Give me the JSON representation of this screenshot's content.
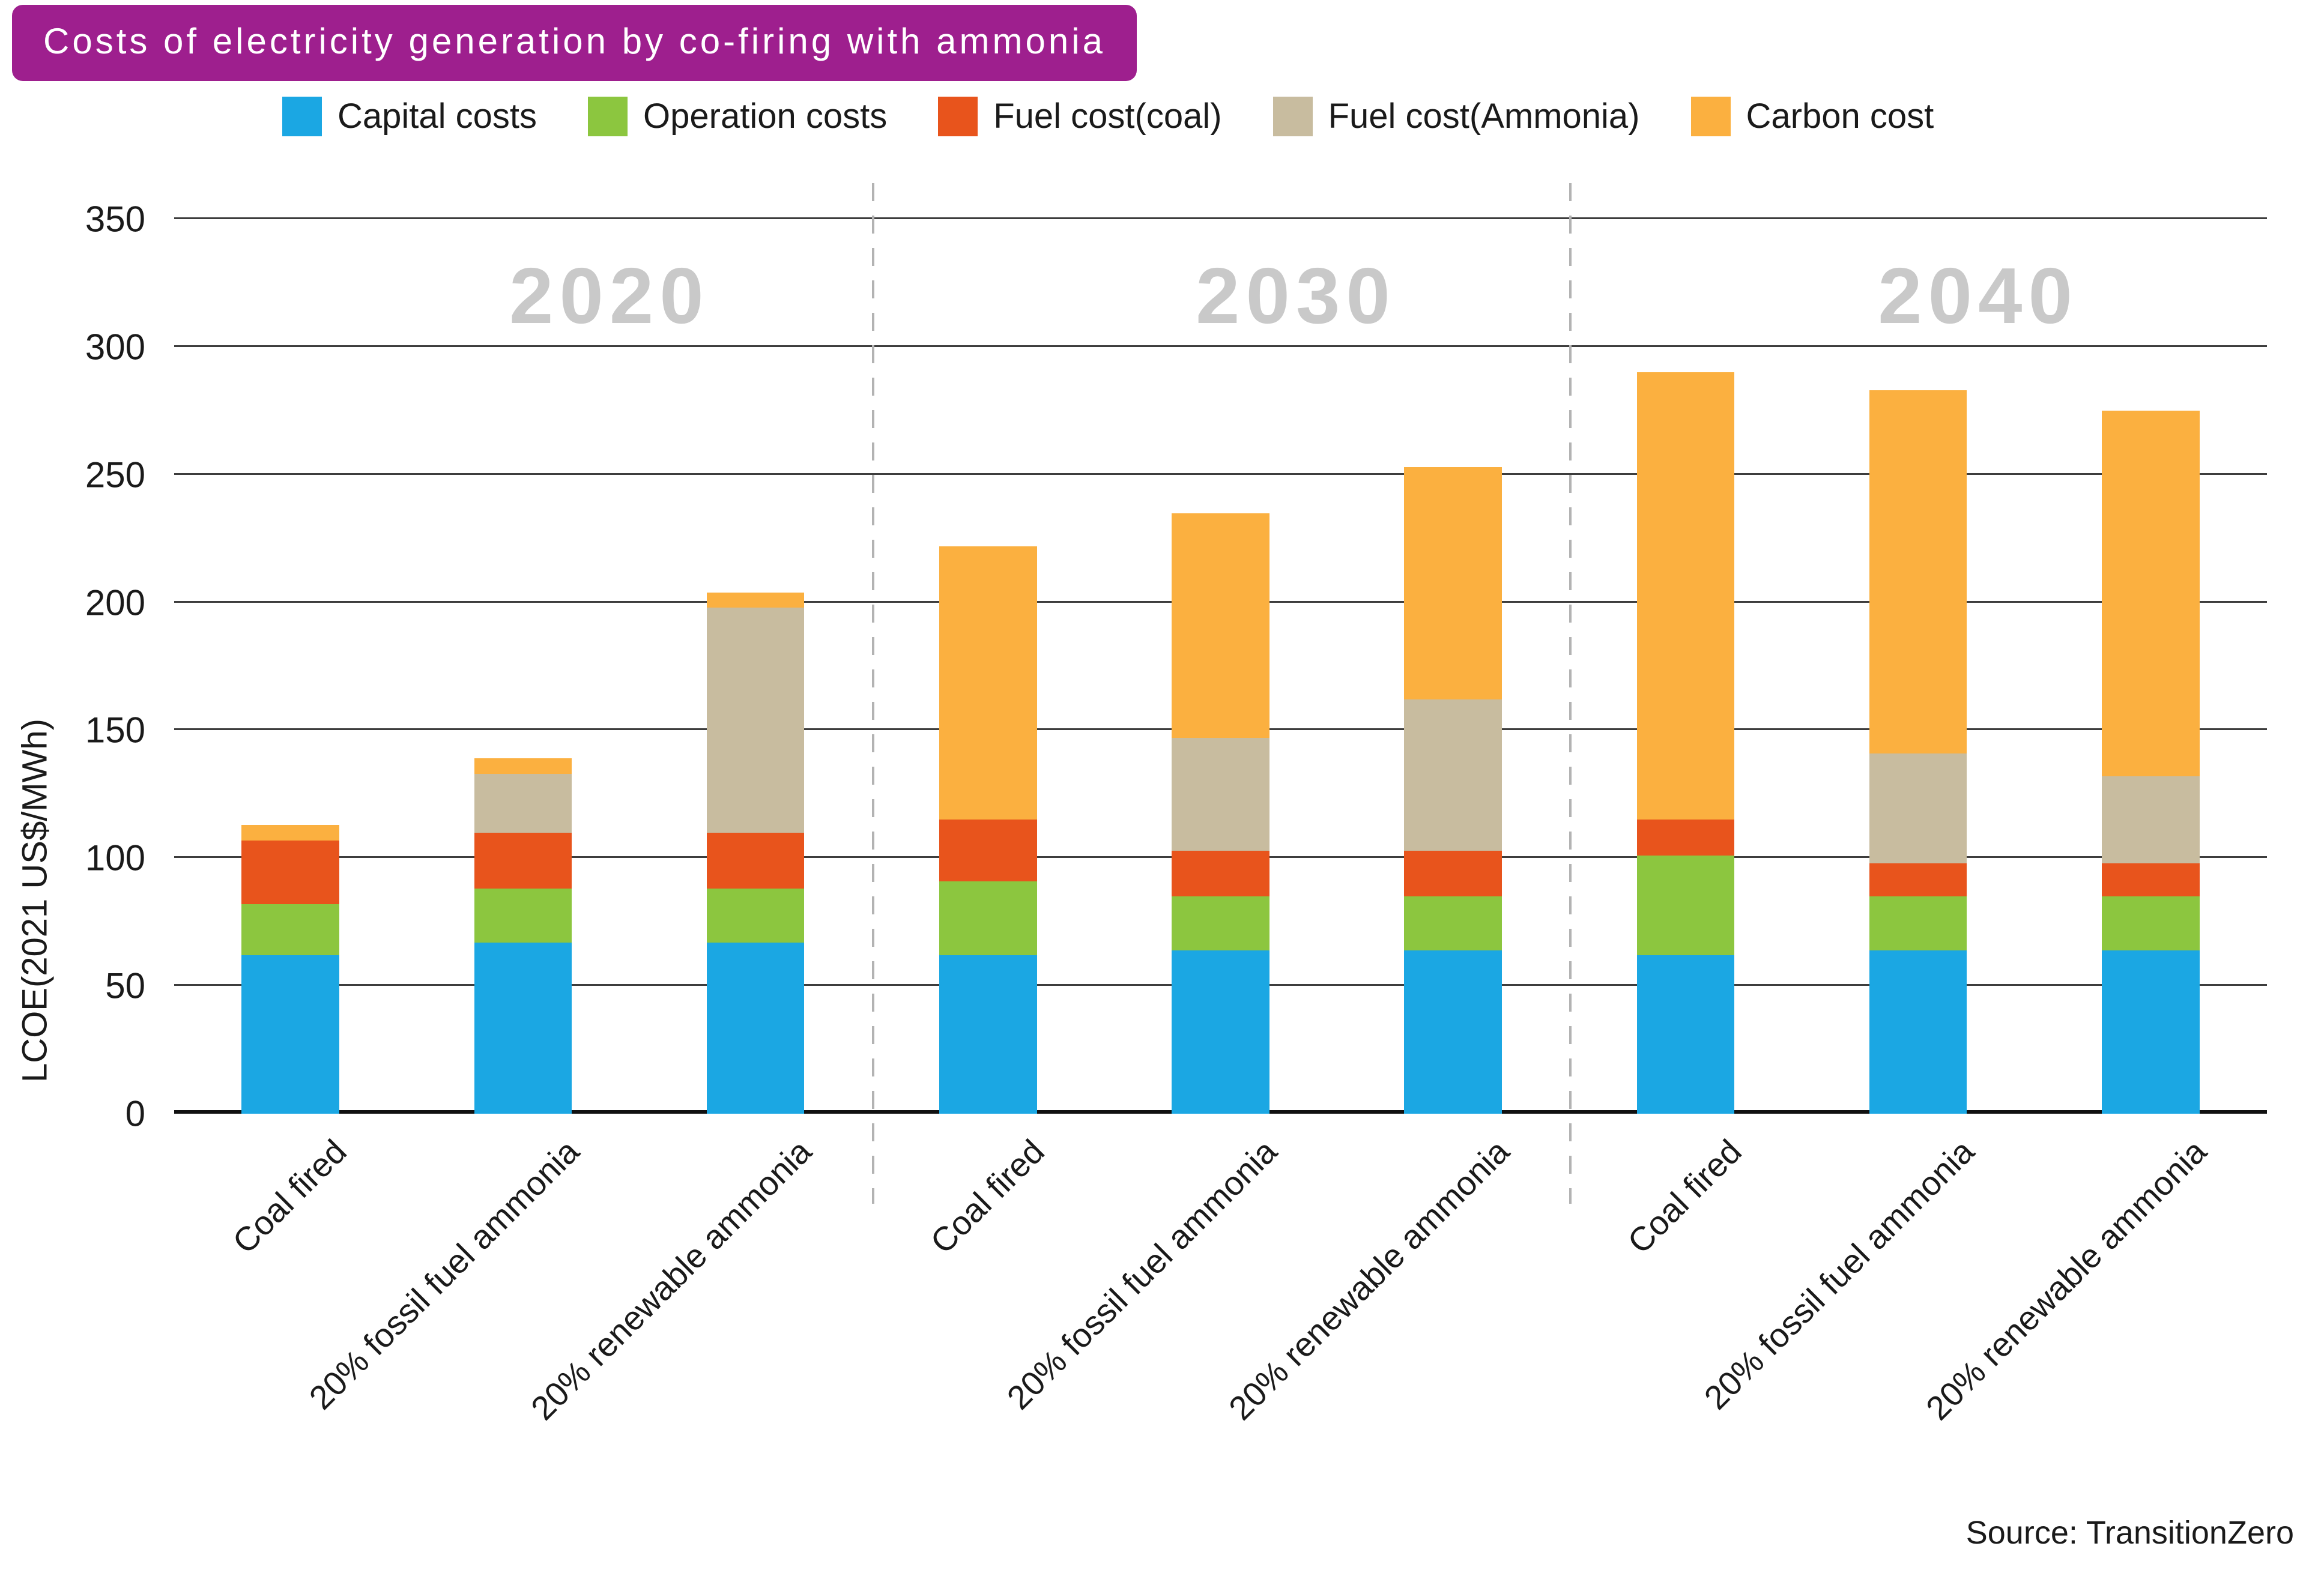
{
  "title": "Costs of electricity generation by co-firing with ammonia",
  "source": "Source: TransitionZero",
  "colors": {
    "title_bg": "#9e1f8e",
    "title_text": "#ffffff",
    "year_label": "#c9c9c9",
    "gridline": "#3d3d3d",
    "axis_line": "#111111",
    "separator": "#b3b3b3",
    "text": "#1a1a1a"
  },
  "chart_data": {
    "type": "bar",
    "stacked": true,
    "title": "Costs of electricity generation by co-firing with ammonia",
    "ylabel": "LCOE(2021 US$/MWh)",
    "xlabel": "",
    "ylim": [
      0,
      350
    ],
    "ytick_step": 50,
    "grid": true,
    "legend_position": "top",
    "group_labels": [
      "2020",
      "2030",
      "2040"
    ],
    "categories": [
      "Coal fired",
      "20% fossil fuel ammonia",
      "20% renewable ammonia",
      "Coal fired",
      "20% fossil fuel ammonia",
      "20% renewable ammonia",
      "Coal fired",
      "20% fossil fuel ammonia",
      "20% renewable ammonia"
    ],
    "series": [
      {
        "name": "Capital costs",
        "color": "#1ba7e3",
        "values": [
          62,
          67,
          67,
          62,
          64,
          64,
          62,
          64,
          64
        ]
      },
      {
        "name": "Operation costs",
        "color": "#8cc63f",
        "values": [
          20,
          21,
          21,
          29,
          21,
          21,
          39,
          21,
          21
        ]
      },
      {
        "name": "Fuel cost(coal)",
        "color": "#e8541c",
        "values": [
          25,
          22,
          22,
          24,
          18,
          18,
          14,
          13,
          13
        ]
      },
      {
        "name": "Fuel cost(Ammonia)",
        "color": "#c8bc9f",
        "values": [
          0,
          23,
          88,
          0,
          44,
          59,
          0,
          43,
          34
        ]
      },
      {
        "name": "Carbon cost",
        "color": "#fbb040",
        "values": [
          6,
          6,
          6,
          107,
          88,
          91,
          175,
          142,
          143
        ]
      }
    ],
    "totals": [
      113,
      139,
      204,
      222,
      235,
      253,
      290,
      283,
      275
    ]
  }
}
